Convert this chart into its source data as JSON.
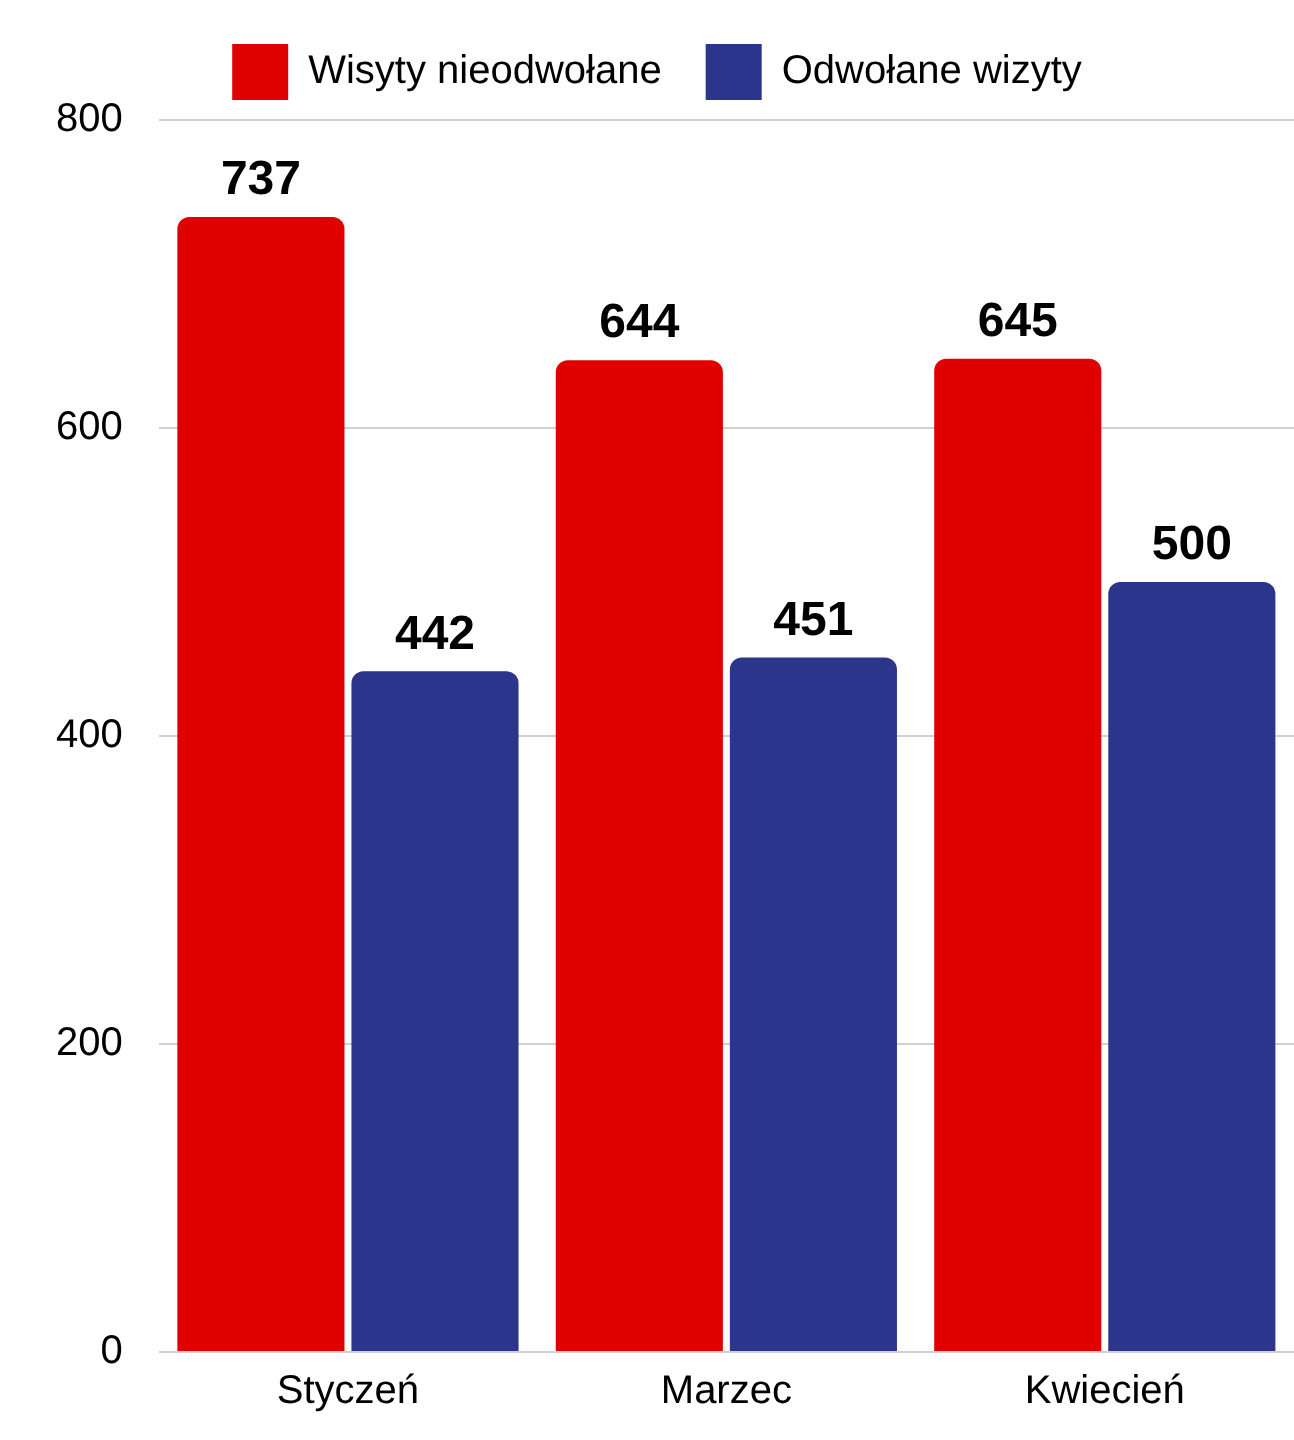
{
  "chart_data": {
    "type": "bar",
    "categories": [
      "Styczeń",
      "Marzec",
      "Kwiecień"
    ],
    "series": [
      {
        "name": "Wisyty nieodwołane",
        "color": "#e00000",
        "values": [
          737,
          644,
          645
        ]
      },
      {
        "name": "Odwołane wizyty",
        "color": "#2b358c",
        "values": [
          442,
          451,
          500
        ]
      }
    ],
    "ylim": [
      0,
      800
    ],
    "yticks": [
      0,
      200,
      400,
      600,
      800
    ],
    "grid": "y",
    "legend": "top",
    "data_labels": true
  }
}
